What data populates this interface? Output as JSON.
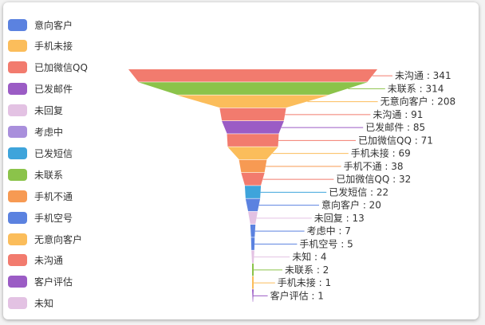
{
  "legend": {
    "items": [
      {
        "label": "意向客户",
        "color": "#5b82e0"
      },
      {
        "label": "手机未接",
        "color": "#fbbd5b"
      },
      {
        "label": "已加微信QQ",
        "color": "#f27b6e"
      },
      {
        "label": "已发邮件",
        "color": "#9b5cc5"
      },
      {
        "label": "未回复",
        "color": "#e3c2e3"
      },
      {
        "label": "考虑中",
        "color": "#a98fdc"
      },
      {
        "label": "已发短信",
        "color": "#3ea4db"
      },
      {
        "label": "未联系",
        "color": "#8bc34a"
      },
      {
        "label": "手机不通",
        "color": "#f79a53"
      },
      {
        "label": "手机空号",
        "color": "#5b82e0"
      },
      {
        "label": "无意向客户",
        "color": "#fbbd5b"
      },
      {
        "label": "未沟通",
        "color": "#f27b6e"
      },
      {
        "label": "客户评估",
        "color": "#9b5cc5"
      },
      {
        "label": "未知",
        "color": "#e3c2e3"
      }
    ]
  },
  "chart_data": {
    "type": "funnel",
    "title": "",
    "sort": "descending",
    "max": 341,
    "label_separator": " : ",
    "stages": [
      {
        "name": "未沟通",
        "value": 341,
        "color": "#f27b6e"
      },
      {
        "name": "未联系",
        "value": 314,
        "color": "#8bc34a"
      },
      {
        "name": "无意向客户",
        "value": 208,
        "color": "#fbbd5b"
      },
      {
        "name": "未沟通",
        "value": 91,
        "color": "#f27b6e"
      },
      {
        "name": "已发邮件",
        "value": 85,
        "color": "#9b5cc5"
      },
      {
        "name": "已加微信QQ",
        "value": 71,
        "color": "#f27b6e"
      },
      {
        "name": "手机未接",
        "value": 69,
        "color": "#fbbd5b"
      },
      {
        "name": "手机不通",
        "value": 38,
        "color": "#f79a53"
      },
      {
        "name": "已加微信QQ",
        "value": 32,
        "color": "#f27b6e"
      },
      {
        "name": "已发短信",
        "value": 22,
        "color": "#3ea4db"
      },
      {
        "name": "意向客户",
        "value": 20,
        "color": "#5b82e0"
      },
      {
        "name": "未回复",
        "value": 13,
        "color": "#e3c2e3"
      },
      {
        "name": "考虑中",
        "value": 7,
        "color": "#5b82e0"
      },
      {
        "name": "手机空号",
        "value": 5,
        "color": "#5b82e0"
      },
      {
        "name": "未知",
        "value": 4,
        "color": "#e3c2e3"
      },
      {
        "name": "未联系",
        "value": 2,
        "color": "#8bc34a"
      },
      {
        "name": "手机未接",
        "value": 1,
        "color": "#fbbd5b"
      },
      {
        "name": "客户评估",
        "value": 1,
        "color": "#9b5cc5"
      }
    ]
  }
}
